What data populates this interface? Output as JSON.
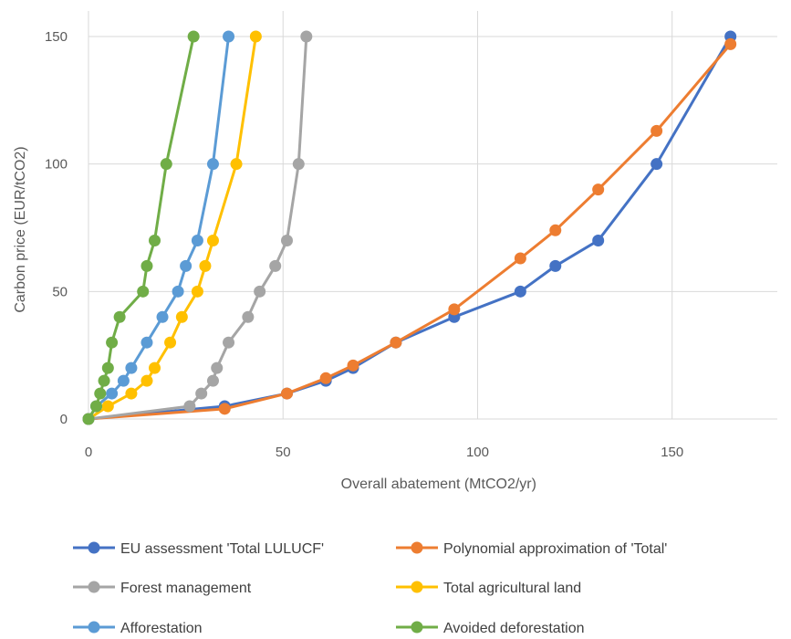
{
  "chart_data": {
    "type": "line",
    "xlabel": "Overall abatement (MtCO2/yr)",
    "ylabel": "Carbon price (EUR/tCO2)",
    "xlim": [
      0,
      170
    ],
    "ylim": [
      0,
      150
    ],
    "x_ticks": [
      "0",
      "50",
      "100",
      "150"
    ],
    "y_ticks": [
      "0",
      "50",
      "100",
      "150"
    ],
    "grid": true,
    "legend_position": "bottom",
    "series": [
      {
        "name": "EU assessment 'Total LULUCF'",
        "color": "#4472C4",
        "x": [
          0,
          35,
          51,
          61,
          68,
          79,
          94,
          111,
          120,
          131,
          146,
          165
        ],
        "y": [
          0,
          5,
          10,
          15,
          20,
          30,
          40,
          50,
          60,
          70,
          100,
          150
        ]
      },
      {
        "name": "Polynomial approximation of 'Total'",
        "color": "#ED7D31",
        "x": [
          0,
          35,
          51,
          61,
          68,
          79,
          94,
          111,
          120,
          131,
          146,
          165
        ],
        "y": [
          0,
          4,
          10,
          16,
          21,
          30,
          43,
          63,
          74,
          90,
          113,
          147
        ]
      },
      {
        "name": "Forest management",
        "color": "#A5A5A5",
        "x": [
          0,
          26,
          29,
          32,
          33,
          36,
          41,
          44,
          48,
          51,
          54,
          56
        ],
        "y": [
          0,
          5,
          10,
          15,
          20,
          30,
          40,
          50,
          60,
          70,
          100,
          150
        ]
      },
      {
        "name": "Total agricultural land",
        "color": "#FFC000",
        "x": [
          0,
          5,
          11,
          15,
          17,
          21,
          24,
          28,
          30,
          32,
          38,
          43
        ],
        "y": [
          0,
          5,
          10,
          15,
          20,
          30,
          40,
          50,
          60,
          70,
          100,
          150
        ]
      },
      {
        "name": "Afforestation",
        "color": "#5B9BD5",
        "x": [
          0,
          2,
          6,
          9,
          11,
          15,
          19,
          23,
          25,
          28,
          32,
          36
        ],
        "y": [
          0,
          5,
          10,
          15,
          20,
          30,
          40,
          50,
          60,
          70,
          100,
          150
        ]
      },
      {
        "name": "Avoided deforestation",
        "color": "#70AD47",
        "x": [
          0,
          2,
          3,
          4,
          5,
          6,
          8,
          14,
          15,
          17,
          20,
          27
        ],
        "y": [
          0,
          5,
          10,
          15,
          20,
          30,
          40,
          50,
          60,
          70,
          100,
          150
        ]
      }
    ]
  },
  "colors": {
    "grid": "#D9D9D9",
    "axis_text": "#595959",
    "legend_text": "#404040"
  }
}
